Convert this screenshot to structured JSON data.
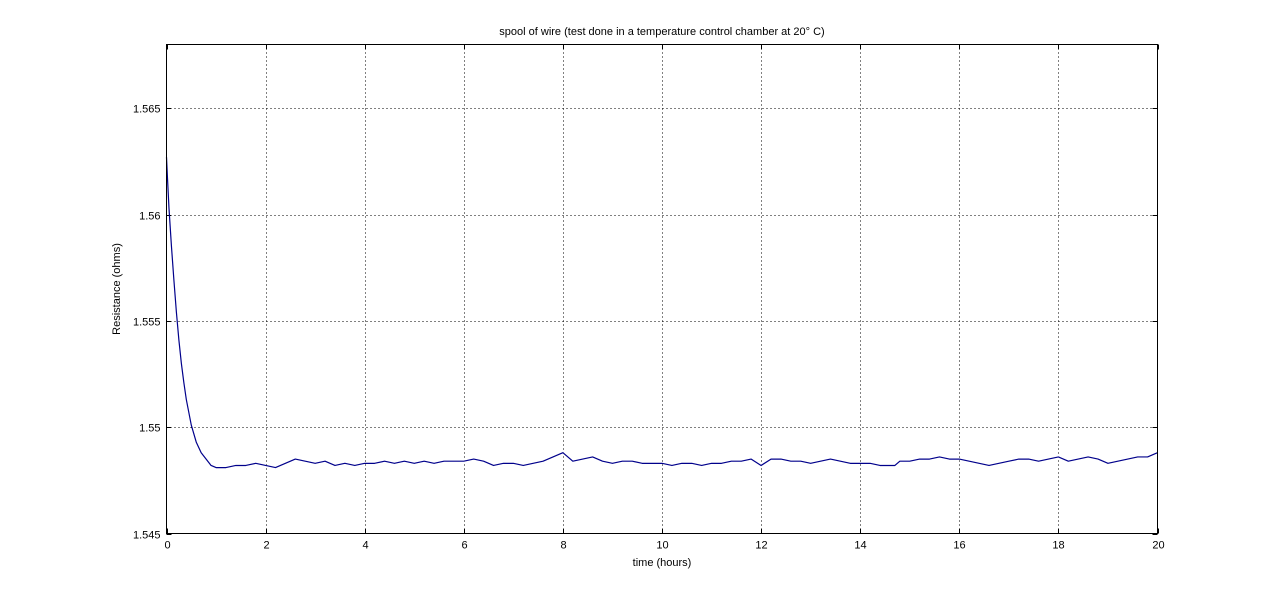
{
  "chart_data": {
    "type": "line",
    "title": "spool of wire (test done in a temperature control chamber at 20° C)",
    "xlabel": "time (hours)",
    "ylabel": "Resistance (ohms)",
    "xlim": [
      0,
      20
    ],
    "ylim": [
      1.545,
      1.568
    ],
    "xticks": [
      0,
      2,
      4,
      6,
      8,
      10,
      12,
      14,
      16,
      18,
      20
    ],
    "xtick_labels": [
      "0",
      "2",
      "4",
      "6",
      "8",
      "10",
      "12",
      "14",
      "16",
      "18",
      "20"
    ],
    "yticks": [
      1.545,
      1.55,
      1.555,
      1.56,
      1.565
    ],
    "ytick_labels": [
      "1.545",
      "1.55",
      "1.555",
      "1.56",
      "1.565"
    ],
    "grid": true,
    "line_color": "#00008B",
    "series": [
      {
        "x": [
          0.0,
          0.02,
          0.05,
          0.1,
          0.15,
          0.2,
          0.25,
          0.3,
          0.35,
          0.4,
          0.5,
          0.6,
          0.7,
          0.8,
          0.9,
          1.0,
          1.2,
          1.4,
          1.6,
          1.8,
          2.0,
          2.2,
          2.4,
          2.6,
          2.8,
          3.0,
          3.2,
          3.4,
          3.6,
          3.8,
          4.0,
          4.2,
          4.4,
          4.6,
          4.8,
          5.0,
          5.2,
          5.4,
          5.6,
          5.8,
          6.0,
          6.2,
          6.4,
          6.6,
          6.8,
          7.0,
          7.2,
          7.4,
          7.6,
          7.8,
          8.0,
          8.1,
          8.2,
          8.4,
          8.6,
          8.8,
          9.0,
          9.2,
          9.4,
          9.6,
          9.8,
          10.0,
          10.2,
          10.4,
          10.6,
          10.8,
          11.0,
          11.2,
          11.4,
          11.6,
          11.8,
          12.0,
          12.2,
          12.4,
          12.6,
          12.8,
          13.0,
          13.2,
          13.4,
          13.6,
          13.8,
          14.0,
          14.2,
          14.4,
          14.6,
          14.7,
          14.8,
          15.0,
          15.2,
          15.4,
          15.6,
          15.8,
          16.0,
          16.2,
          16.4,
          16.6,
          16.8,
          17.0,
          17.2,
          17.4,
          17.6,
          17.8,
          18.0,
          18.2,
          18.4,
          18.6,
          18.8,
          19.0,
          19.2,
          19.4,
          19.6,
          19.8,
          20.0
        ],
        "values": [
          1.5627,
          1.5617,
          1.5603,
          1.5585,
          1.5569,
          1.5554,
          1.5541,
          1.553,
          1.5521,
          1.5513,
          1.5501,
          1.5493,
          1.5488,
          1.5485,
          1.5482,
          1.5481,
          1.5481,
          1.5482,
          1.5482,
          1.5483,
          1.5482,
          1.5481,
          1.5483,
          1.5485,
          1.5484,
          1.5483,
          1.5484,
          1.5482,
          1.5483,
          1.5482,
          1.5483,
          1.5483,
          1.5484,
          1.5483,
          1.5484,
          1.5483,
          1.5484,
          1.5483,
          1.5484,
          1.5484,
          1.5484,
          1.5485,
          1.5484,
          1.5482,
          1.5483,
          1.5483,
          1.5482,
          1.5483,
          1.5484,
          1.5486,
          1.5488,
          1.5486,
          1.5484,
          1.5485,
          1.5486,
          1.5484,
          1.5483,
          1.5484,
          1.5484,
          1.5483,
          1.5483,
          1.5483,
          1.5482,
          1.5483,
          1.5483,
          1.5482,
          1.5483,
          1.5483,
          1.5484,
          1.5484,
          1.5485,
          1.5482,
          1.5485,
          1.5485,
          1.5484,
          1.5484,
          1.5483,
          1.5484,
          1.5485,
          1.5484,
          1.5483,
          1.5483,
          1.5483,
          1.5482,
          1.5482,
          1.5482,
          1.5484,
          1.5484,
          1.5485,
          1.5485,
          1.5486,
          1.5485,
          1.5485,
          1.5484,
          1.5483,
          1.5482,
          1.5483,
          1.5484,
          1.5485,
          1.5485,
          1.5484,
          1.5485,
          1.5486,
          1.5484,
          1.5485,
          1.5486,
          1.5485,
          1.5483,
          1.5484,
          1.5485,
          1.5486,
          1.5486,
          1.5488
        ]
      }
    ]
  }
}
